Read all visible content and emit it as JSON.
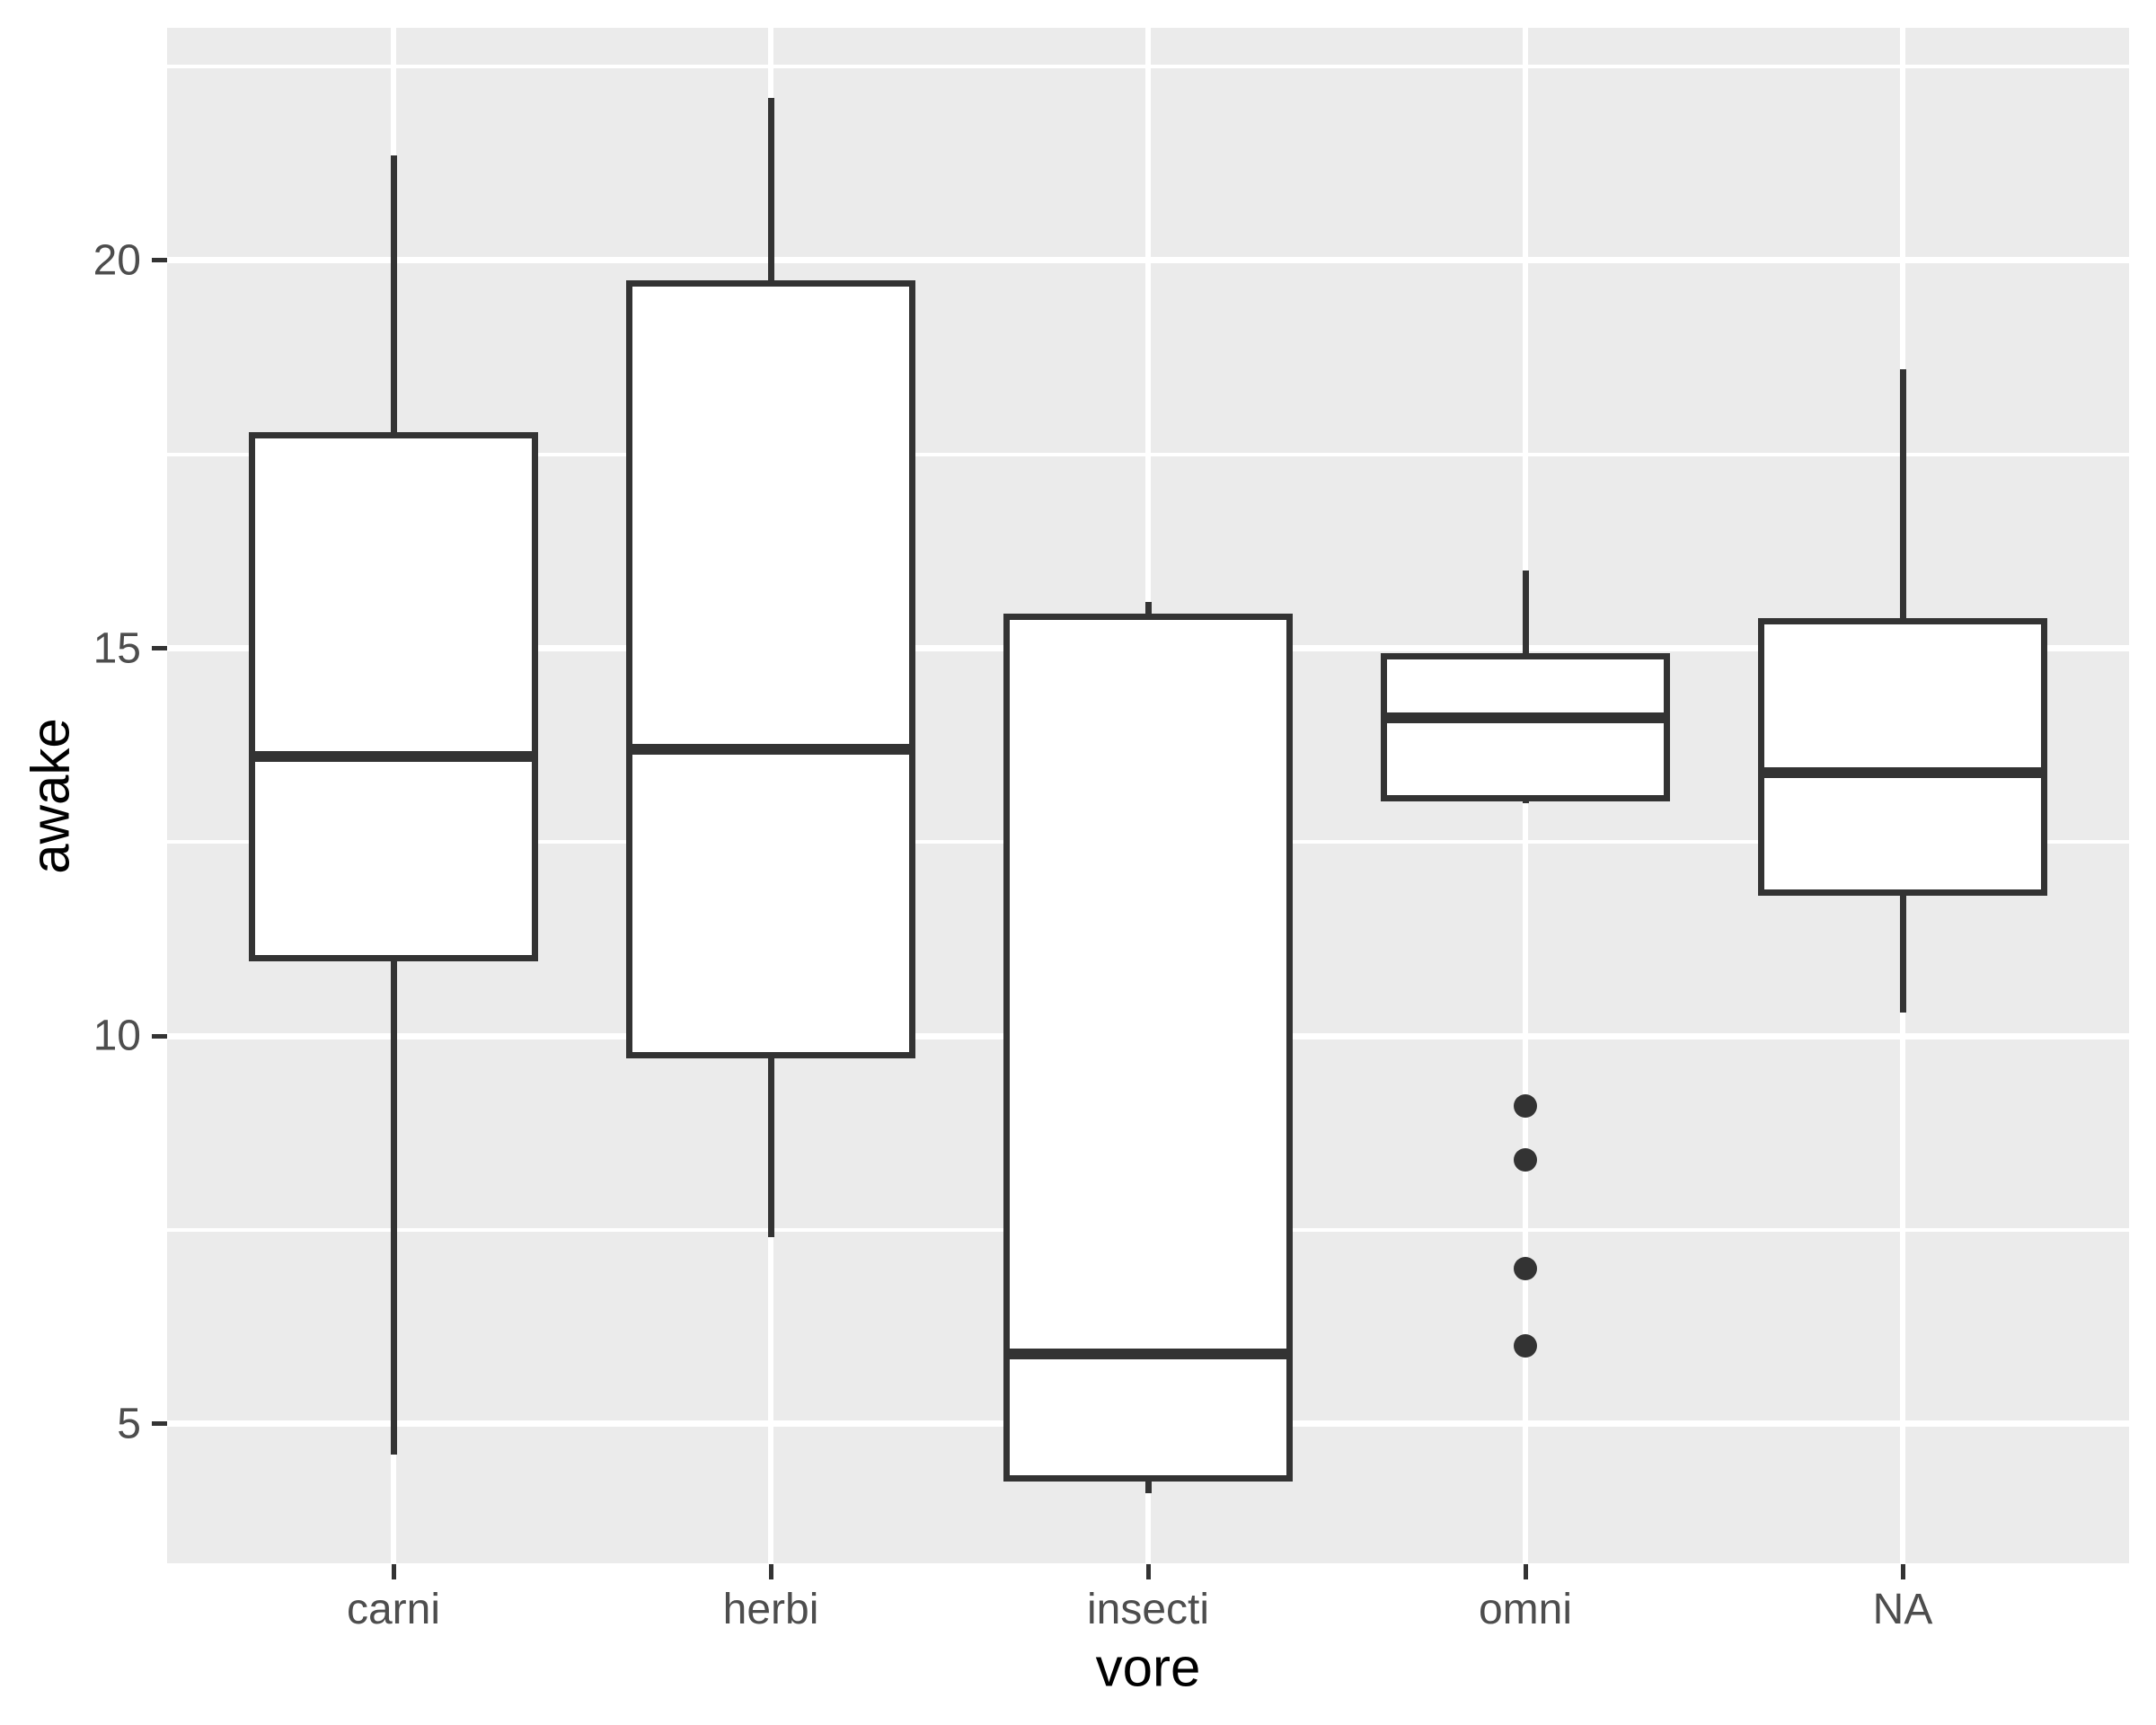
{
  "chart_data": {
    "type": "boxplot",
    "title": "",
    "xlabel": "vore",
    "ylabel": "awake",
    "categories": [
      "carni",
      "herbi",
      "insecti",
      "omni",
      "NA"
    ],
    "ylim": [
      3.2,
      23.0
    ],
    "y_ticks": [
      20,
      15,
      10,
      5
    ],
    "y_tick_labels": [
      "20",
      "15",
      "10",
      "5"
    ],
    "y_minor_gridlines": [
      22.5,
      17.5,
      12.5,
      7.5
    ],
    "legend": "none",
    "grid": "major-and-minor-white-on-grey",
    "series": [
      {
        "category": "carni",
        "whisker_low": 4.6,
        "q1": 11.0,
        "median": 13.6,
        "q3": 17.75,
        "whisker_high": 21.35,
        "outliers": []
      },
      {
        "category": "herbi",
        "whisker_low": 7.4,
        "q1": 9.75,
        "median": 13.7,
        "q3": 19.7,
        "whisker_high": 22.1,
        "outliers": []
      },
      {
        "category": "insecti",
        "whisker_low": 4.1,
        "q1": 4.3,
        "median": 5.9,
        "q3": 15.4,
        "whisker_high": 15.6,
        "outliers": []
      },
      {
        "category": "omni",
        "whisker_low": 13.0,
        "q1": 13.07,
        "median": 14.1,
        "q3": 14.9,
        "whisker_high": 16.0,
        "outliers": [
          9.1,
          8.4,
          7.0,
          6.0
        ]
      },
      {
        "category": "NA",
        "whisker_low": 10.3,
        "q1": 11.85,
        "median": 13.4,
        "q3": 15.35,
        "whisker_high": 18.6,
        "outliers": []
      }
    ],
    "colors": {
      "panel_background": "#EBEBEB",
      "gridline": "#FFFFFF",
      "box_stroke": "#333333",
      "box_fill": "#FFFFFF",
      "axis_text": "#4D4D4D",
      "axis_title": "#000000"
    }
  }
}
